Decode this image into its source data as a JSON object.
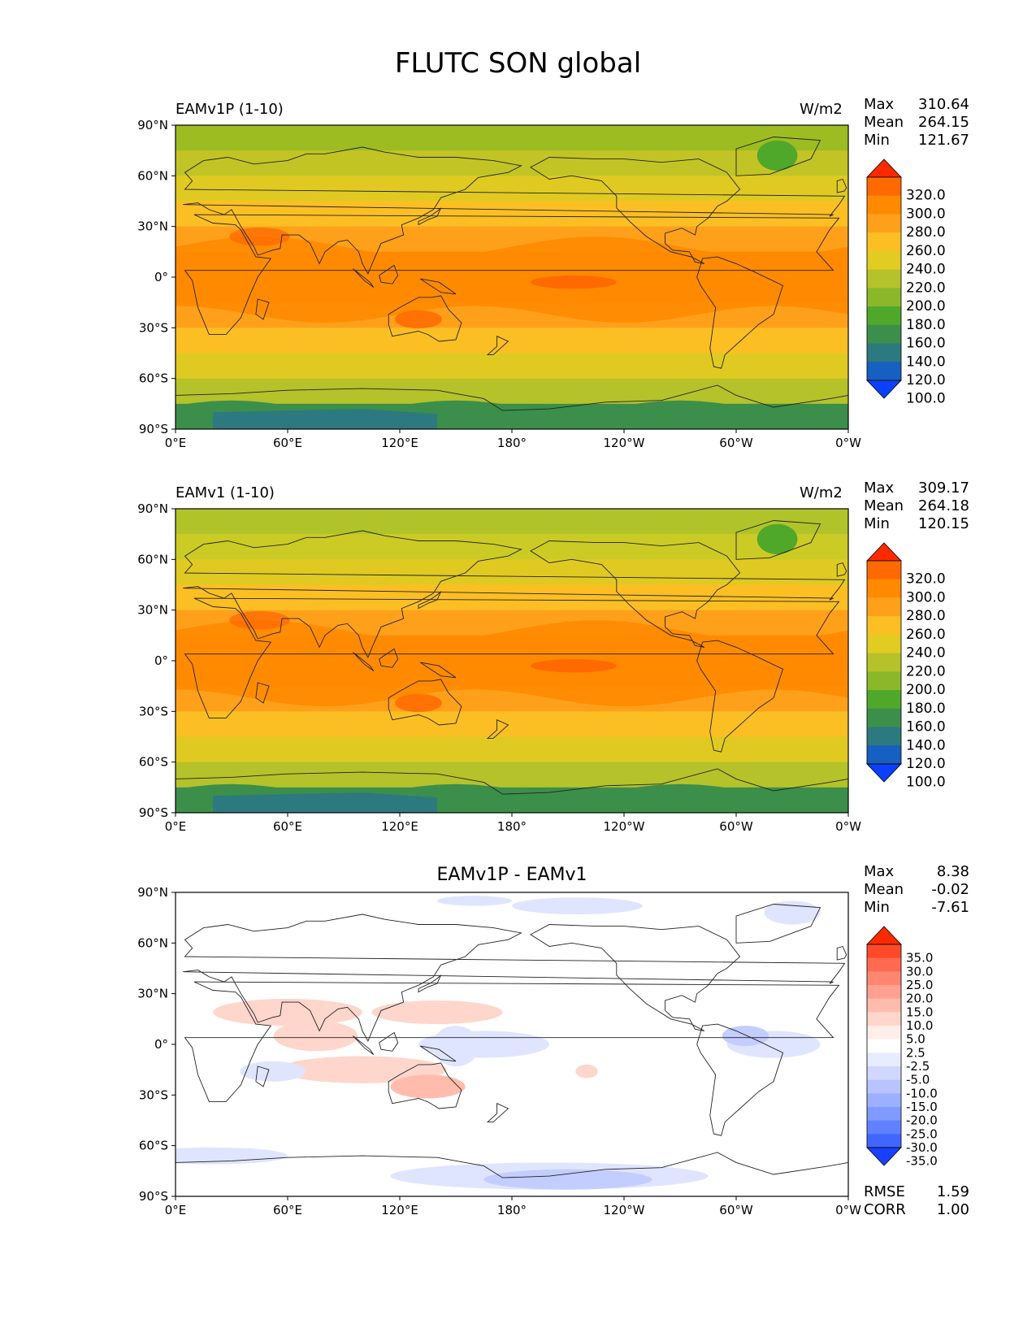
{
  "title": "FLUTC SON global",
  "lon_ticks": [
    "0°E",
    "60°E",
    "120°E",
    "180°",
    "120°W",
    "60°W",
    "0°W"
  ],
  "lat_ticks": [
    "90°N",
    "60°N",
    "30°N",
    "0°",
    "30°S",
    "60°S",
    "90°S"
  ],
  "panels": [
    {
      "left_title": "EAMv1P (1-10)",
      "center_title": "",
      "units": "W/m2",
      "stats": [
        {
          "label": "Max",
          "value": "310.64"
        },
        {
          "label": "Mean",
          "value": "264.15"
        },
        {
          "label": "Min",
          "value": "121.67"
        }
      ],
      "colorbar": {
        "labels": [
          "320.0",
          "300.0",
          "280.0",
          "260.0",
          "240.0",
          "220.0",
          "200.0",
          "180.0",
          "160.0",
          "140.0",
          "120.0",
          "100.0"
        ],
        "colors": [
          "#ff2a00",
          "#ff6a00",
          "#ff8a00",
          "#ffa01a",
          "#fbbf24",
          "#e2cc22",
          "#b5c22a",
          "#8ab82a",
          "#4fa82a",
          "#3c8f4a",
          "#2c7a80",
          "#1560c0",
          "#0a40ff"
        ]
      },
      "extra_stats": []
    },
    {
      "left_title": "EAMv1 (1-10)",
      "center_title": "",
      "units": "W/m2",
      "stats": [
        {
          "label": "Max",
          "value": "309.17"
        },
        {
          "label": "Mean",
          "value": "264.18"
        },
        {
          "label": "Min",
          "value": "120.15"
        }
      ],
      "colorbar": {
        "labels": [
          "320.0",
          "300.0",
          "280.0",
          "260.0",
          "240.0",
          "220.0",
          "200.0",
          "180.0",
          "160.0",
          "140.0",
          "120.0",
          "100.0"
        ],
        "colors": [
          "#ff2a00",
          "#ff6a00",
          "#ff8a00",
          "#ffa01a",
          "#fbbf24",
          "#e2cc22",
          "#b5c22a",
          "#8ab82a",
          "#4fa82a",
          "#3c8f4a",
          "#2c7a80",
          "#1560c0",
          "#0a40ff"
        ]
      },
      "extra_stats": []
    },
    {
      "left_title": "",
      "center_title": "EAMv1P - EAMv1",
      "units": "",
      "stats": [
        {
          "label": "Max",
          "value": "8.38"
        },
        {
          "label": "Mean",
          "value": "-0.02"
        },
        {
          "label": "Min",
          "value": "-7.61"
        }
      ],
      "colorbar": {
        "labels": [
          "35.0",
          "30.0",
          "25.0",
          "20.0",
          "15.0",
          "10.0",
          "5.0",
          "2.5",
          "-2.5",
          "-5.0",
          "-10.0",
          "-15.0",
          "-20.0",
          "-25.0",
          "-30.0",
          "-35.0"
        ],
        "colors": [
          "#ff2a00",
          "#ff4a2a",
          "#ff6a50",
          "#ff8670",
          "#ffa090",
          "#ffbcac",
          "#ffd6cc",
          "#ffeeea",
          "#ffffff",
          "#e8ecff",
          "#d0d8ff",
          "#b8c4ff",
          "#9cb0ff",
          "#809aff",
          "#6080ff",
          "#4066ff",
          "#1a40ff"
        ]
      },
      "extra_stats": [
        {
          "label": "RMSE",
          "value": "1.59"
        },
        {
          "label": "CORR",
          "value": "1.00"
        }
      ]
    }
  ],
  "colors": {
    "panel1_bands": [
      "#9cbc22",
      "#c2c425",
      "#e0ca22",
      "#fbbf24",
      "#ffa01a",
      "#ff8a00",
      "#ff8a00",
      "#ffa01a",
      "#fbbf24",
      "#e0ca22",
      "#b5c22a",
      "#3c8f4a"
    ],
    "panel2_bands": [
      "#b0c42a",
      "#cccb25",
      "#e0ca22",
      "#fbbf24",
      "#ffa01a",
      "#ff8a00",
      "#ff8a00",
      "#ffa01a",
      "#fbbf24",
      "#e0ca22",
      "#b5c22a",
      "#3c8f4a"
    ],
    "antarctic": "#2c7a80",
    "hotspot": "#ff6a00",
    "greenland": "#4fa82a"
  }
}
